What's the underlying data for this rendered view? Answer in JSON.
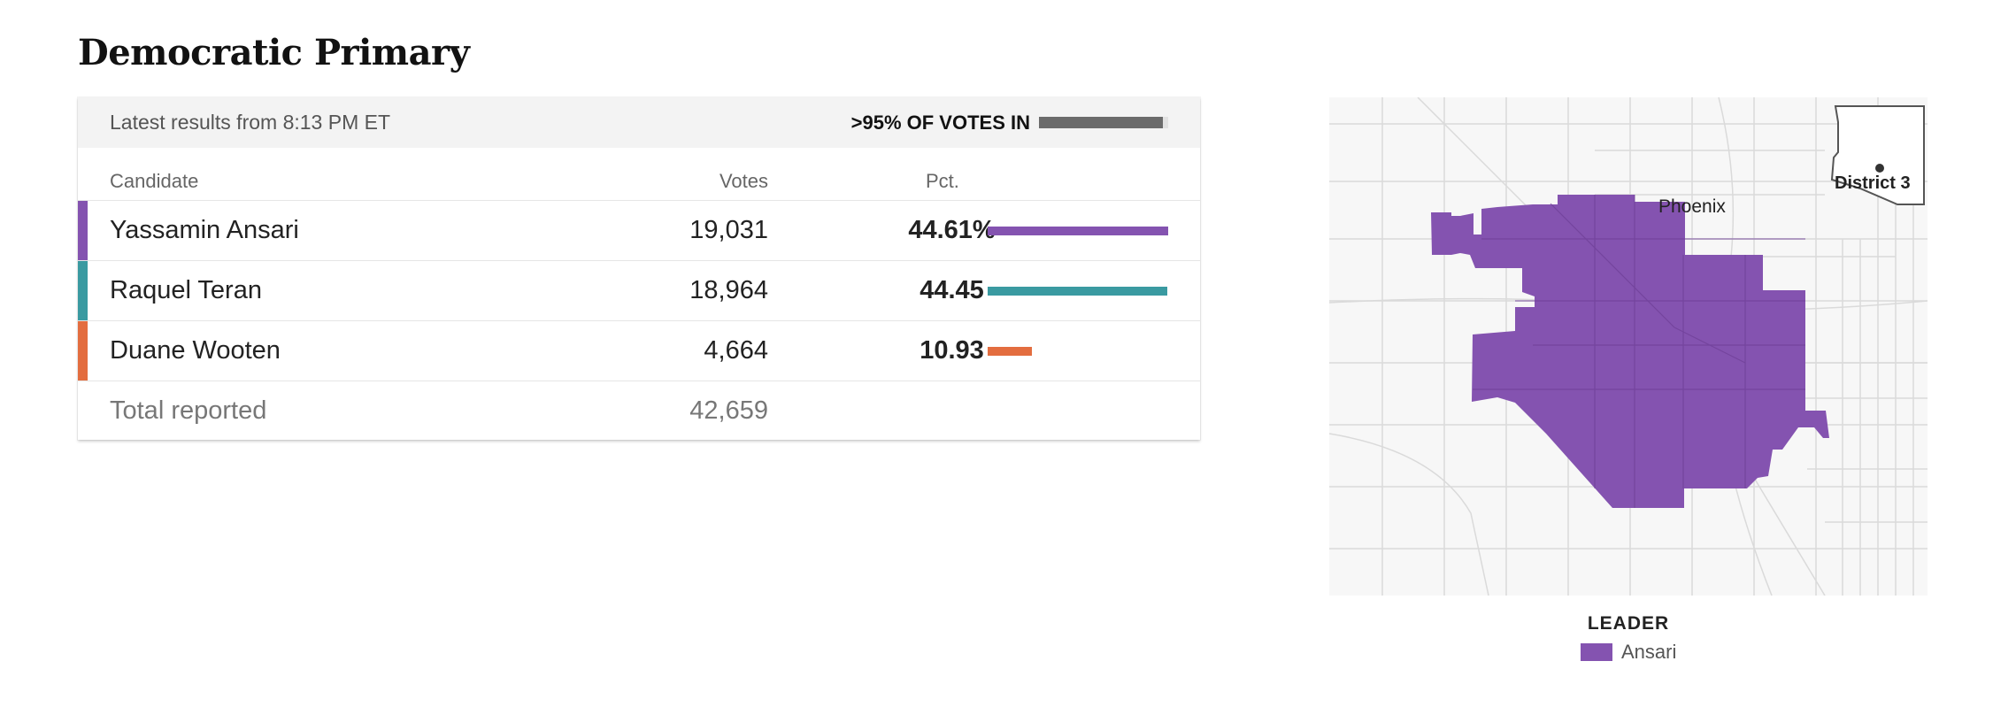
{
  "title": "Democratic Primary",
  "results": {
    "latest": "Latest results from 8:13 PM ET",
    "votes_in_label": ">95% OF VOTES IN",
    "votes_in_fraction": 0.96,
    "columns": {
      "candidate": "Candidate",
      "votes": "Votes",
      "pct": "Pct."
    },
    "candidates": [
      {
        "name": "Yassamin Ansari",
        "votes": "19,031",
        "pct": "44.61%",
        "pct_value": 44.61,
        "color": "#8453b0"
      },
      {
        "name": "Raquel Teran",
        "votes": "18,964",
        "pct": "44.45",
        "pct_value": 44.45,
        "color": "#3a9aa1"
      },
      {
        "name": "Duane Wooten",
        "votes": "4,664",
        "pct": "10.93",
        "pct_value": 10.93,
        "color": "#e36d3f"
      }
    ],
    "total": {
      "label": "Total reported",
      "votes": "42,659"
    }
  },
  "map": {
    "city_label": "Phoenix",
    "district_label": "District 3",
    "leader_color": "#8453b0"
  },
  "legend": {
    "title": "LEADER",
    "item": "Ansari",
    "color": "#8453b0"
  }
}
